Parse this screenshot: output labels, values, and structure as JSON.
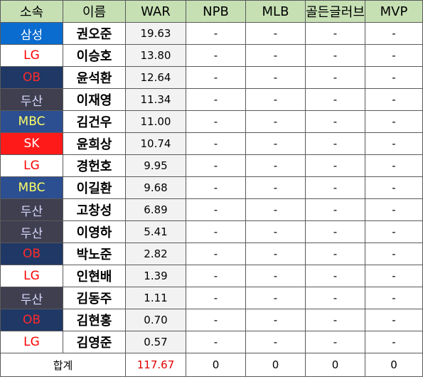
{
  "headers": [
    "소속",
    "이름",
    "WAR",
    "NPB",
    "MLB",
    "골든글러브",
    "MVP"
  ],
  "rows": [
    {
      "team": "삼성",
      "team_color": "blue",
      "name": "권오준",
      "war": "19.63",
      "npb": "-",
      "mlb": "-",
      "gg": "-",
      "mvp": "-"
    },
    {
      "team": "LG",
      "team_color": "lg",
      "name": "이승호",
      "war": "13.80",
      "npb": "-",
      "mlb": "-",
      "gg": "-",
      "mvp": "-"
    },
    {
      "team": "OB",
      "team_color": "ob",
      "name": "윤석환",
      "war": "12.64",
      "npb": "-",
      "mlb": "-",
      "gg": "-",
      "mvp": "-"
    },
    {
      "team": "두산",
      "team_color": "doosan",
      "name": "이재영",
      "war": "11.34",
      "npb": "-",
      "mlb": "-",
      "gg": "-",
      "mvp": "-"
    },
    {
      "team": "MBC",
      "team_color": "mbc",
      "name": "김건우",
      "war": "11.00",
      "npb": "-",
      "mlb": "-",
      "gg": "-",
      "mvp": "-"
    },
    {
      "team": "SK",
      "team_color": "sk",
      "name": "윤희상",
      "war": "10.74",
      "npb": "-",
      "mlb": "-",
      "gg": "-",
      "mvp": "-"
    },
    {
      "team": "LG",
      "team_color": "lg",
      "name": "경헌호",
      "war": "9.95",
      "npb": "-",
      "mlb": "-",
      "gg": "-",
      "mvp": "-"
    },
    {
      "team": "MBC",
      "team_color": "mbc",
      "name": "이길환",
      "war": "9.68",
      "npb": "-",
      "mlb": "-",
      "gg": "-",
      "mvp": "-"
    },
    {
      "team": "두산",
      "team_color": "doosan",
      "name": "고창성",
      "war": "6.89",
      "npb": "-",
      "mlb": "-",
      "gg": "-",
      "mvp": "-"
    },
    {
      "team": "두산",
      "team_color": "doosan",
      "name": "이영하",
      "war": "5.41",
      "npb": "-",
      "mlb": "-",
      "gg": "-",
      "mvp": "-"
    },
    {
      "team": "OB",
      "team_color": "ob",
      "name": "박노준",
      "war": "2.82",
      "npb": "-",
      "mlb": "-",
      "gg": "-",
      "mvp": "-"
    },
    {
      "team": "LG",
      "team_color": "lg",
      "name": "인현배",
      "war": "1.39",
      "npb": "-",
      "mlb": "-",
      "gg": "-",
      "mvp": "-"
    },
    {
      "team": "두산",
      "team_color": "doosan",
      "name": "김동주",
      "war": "1.11",
      "npb": "-",
      "mlb": "-",
      "gg": "-",
      "mvp": "-"
    },
    {
      "team": "OB",
      "team_color": "ob",
      "name": "김현홍",
      "war": "0.70",
      "npb": "-",
      "mlb": "-",
      "gg": "-",
      "mvp": "-"
    },
    {
      "team": "LG",
      "team_color": "lg",
      "name": "김영준",
      "war": "0.57",
      "npb": "-",
      "mlb": "-",
      "gg": "-",
      "mvp": "-"
    }
  ],
  "total": {
    "label": "합계",
    "war": "117.67",
    "npb": "0",
    "mlb": "0",
    "gg": "0",
    "mvp": "0"
  },
  "colors": {
    "header_bg": "#c6e0b4",
    "grid_border": "#5a5a5a",
    "war_cell_bg": "#f2f2f2",
    "total_war_text": "#e00000",
    "team_blue_bg": "#0a6ccf",
    "team_lg_text": "#ff0000",
    "team_ob_bg": "#1f3866",
    "team_doosan_bg": "#3f3f50",
    "team_mbc_bg": "#2b4f91",
    "team_mbc_text": "#ffff66",
    "team_sk_bg": "#ff1a1a"
  }
}
